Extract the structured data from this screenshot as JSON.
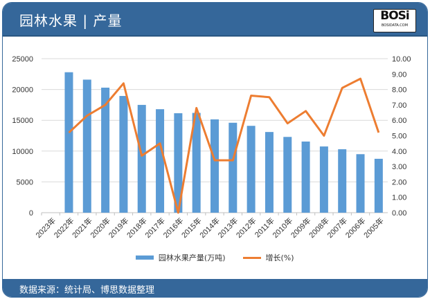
{
  "header": {
    "title": "园林水果 | 产量",
    "logo_text": "BOSi",
    "logo_sub": "BOSIDATA.COM"
  },
  "footer": {
    "source": "数据来源：统计局、博思数据整理"
  },
  "colors": {
    "bar": "#5b9bd5",
    "line": "#ed7d31",
    "header": "#35679a"
  },
  "chart_data": {
    "type": "bar+line",
    "categories": [
      "2023年",
      "2022年",
      "2021年",
      "2020年",
      "2019年",
      "2018年",
      "2017年",
      "2016年",
      "2015年",
      "2014年",
      "2013年",
      "2012年",
      "2011年",
      "2010年",
      "2009年",
      "2008年",
      "2007年",
      "2006年",
      "2005年"
    ],
    "series": [
      {
        "name": "园林水果产量(万吨)",
        "type": "bar",
        "axis": "left",
        "values": [
          null,
          22800,
          21600,
          20300,
          18950,
          17500,
          16800,
          16150,
          16200,
          15150,
          14600,
          14100,
          13100,
          12300,
          11550,
          10750,
          10300,
          9500,
          8750
        ]
      },
      {
        "name": "增长(%)",
        "type": "line",
        "axis": "right",
        "values": [
          null,
          5.2,
          6.3,
          7.0,
          8.4,
          3.7,
          4.5,
          0.0,
          6.8,
          3.4,
          3.4,
          7.6,
          7.5,
          5.8,
          6.6,
          5.0,
          8.1,
          8.7,
          5.2
        ]
      }
    ],
    "y_left": {
      "ticks": [
        "0",
        "5000",
        "10000",
        "15000",
        "20000",
        "25000"
      ],
      "range": [
        0,
        25000
      ]
    },
    "y_right": {
      "ticks": [
        "0.00",
        "1.00",
        "2.00",
        "3.00",
        "4.00",
        "5.00",
        "6.00",
        "7.00",
        "8.00",
        "9.00",
        "10.00"
      ],
      "range": [
        0,
        10
      ]
    },
    "grid": true,
    "legend_position": "bottom"
  }
}
